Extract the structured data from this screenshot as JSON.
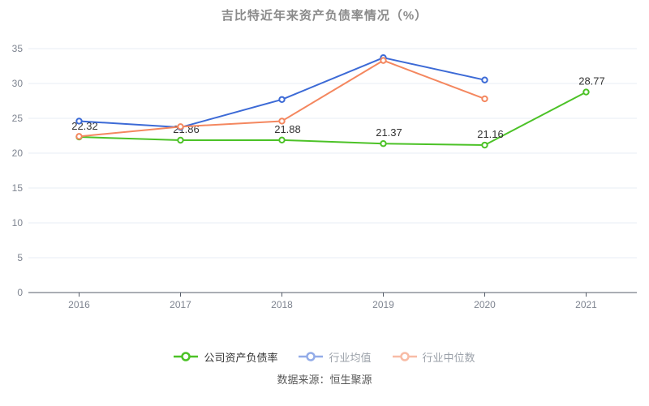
{
  "title": "吉比特近年来资产负债率情况（%）",
  "source": "数据来源：恒生聚源",
  "chart_data": {
    "type": "line",
    "categories": [
      "2016",
      "2017",
      "2018",
      "2019",
      "2020",
      "2021"
    ],
    "series": [
      {
        "id": "company-debt-ratio",
        "name": "公司资产负债率",
        "color": "#4cc227",
        "values": [
          22.32,
          21.86,
          21.88,
          21.37,
          21.16,
          28.77
        ],
        "labeled": true
      },
      {
        "id": "industry-mean",
        "name": "行业均值",
        "color": "#3c6ad6",
        "values": [
          24.6,
          23.7,
          27.7,
          33.7,
          30.5,
          null
        ],
        "labeled": false
      },
      {
        "id": "industry-median",
        "name": "行业中位数",
        "color": "#f4875f",
        "values": [
          22.4,
          23.8,
          24.6,
          33.3,
          27.8,
          null
        ],
        "labeled": false
      }
    ],
    "ylim": [
      0,
      35
    ],
    "yticks": [
      0,
      5,
      10,
      15,
      20,
      25,
      30,
      35
    ],
    "grid": true,
    "legend_position": "bottom",
    "marker_style": "hollow-circle"
  },
  "legend": {
    "items": [
      {
        "id": "company-debt-ratio",
        "label": "公司资产负债率",
        "color": "#4cc227",
        "emphasis": true
      },
      {
        "id": "industry-mean",
        "label": "行业均值",
        "color": "#3c6ad6",
        "emphasis": false
      },
      {
        "id": "industry-median",
        "label": "行业中位数",
        "color": "#f4875f",
        "emphasis": false
      }
    ]
  }
}
